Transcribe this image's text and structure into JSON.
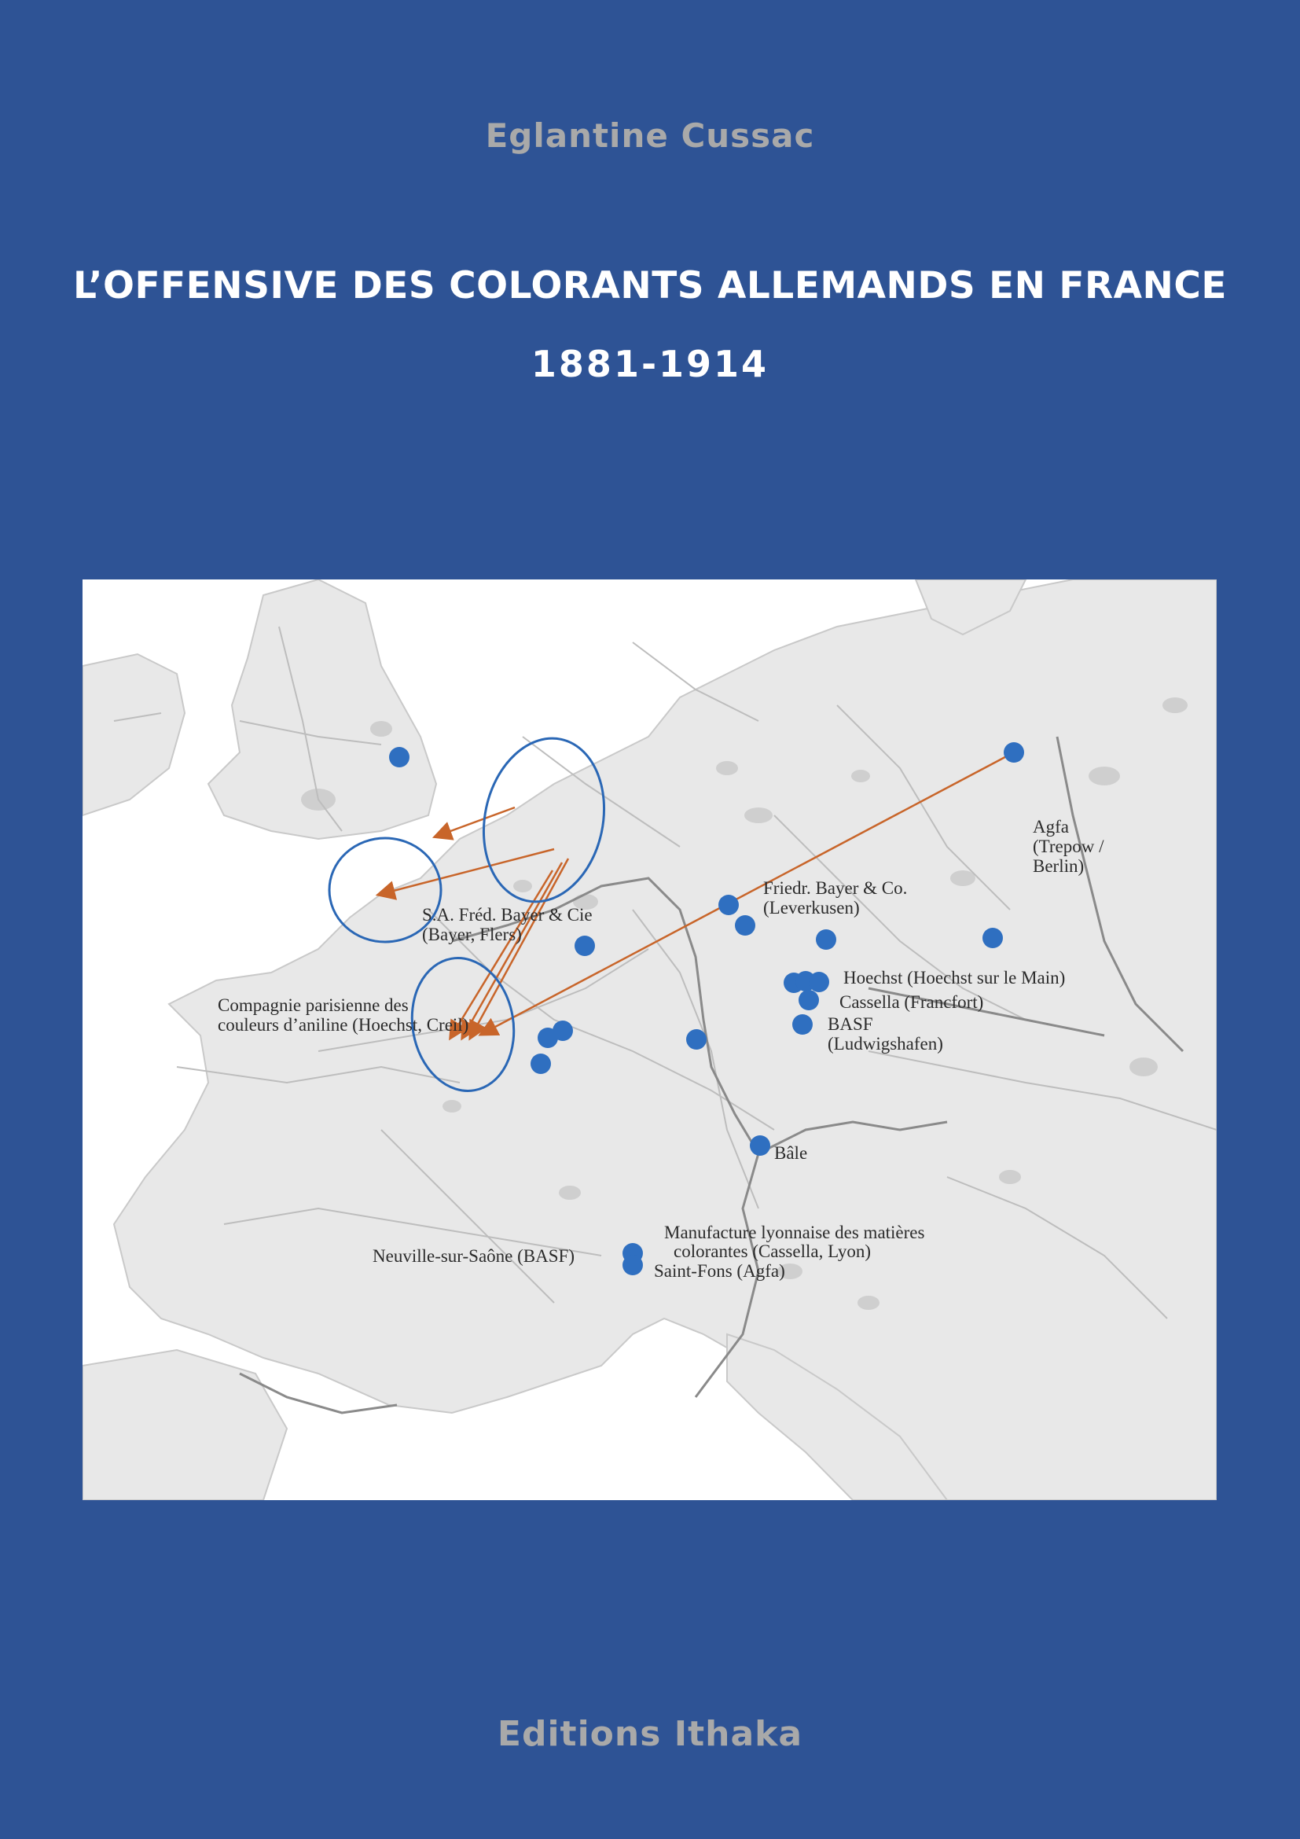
{
  "cover": {
    "author": "Eglantine Cussac",
    "title": "L’OFFENSIVE DES COLORANTS ALLEMANDS EN FRANCE",
    "years": "1881-1914",
    "publisher": "Editions Ithaka"
  },
  "colors": {
    "background": "#2e5395",
    "author_text": "#a9a9a9",
    "title_text": "#ffffff",
    "marker": "#2f6fc0",
    "arrow": "#c8652a",
    "circle": "#2a67b5"
  },
  "map": {
    "labels": {
      "agfa_1": "Agfa",
      "agfa_2": "(Trepow /",
      "agfa_3": "Berlin)",
      "bayer_lev_1": "Friedr. Bayer & Co.",
      "bayer_lev_2": "(Leverkusen)",
      "bayer_flers_1": "S.A. Fréd. Bayer & Cie",
      "bayer_flers_2": "(Bayer, Flers)",
      "hoechst": "Hoechst (Hoechst sur le Main)",
      "cassella": "Cassella (Francfort)",
      "basf_1": "BASF",
      "basf_2": "(Ludwigshafen)",
      "compagnie_1": "Compagnie parisienne des",
      "compagnie_2": "couleurs d’aniline (Hoechst, Creil)",
      "bale": "Bâle",
      "manufacture_1": "Manufacture lyonnaise des matières",
      "manufacture_2": "colorantes (Cassella, Lyon)",
      "saint_fons": "Saint-Fons (Agfa)",
      "neuville": "Neuville-sur-Saône (BASF)"
    }
  }
}
